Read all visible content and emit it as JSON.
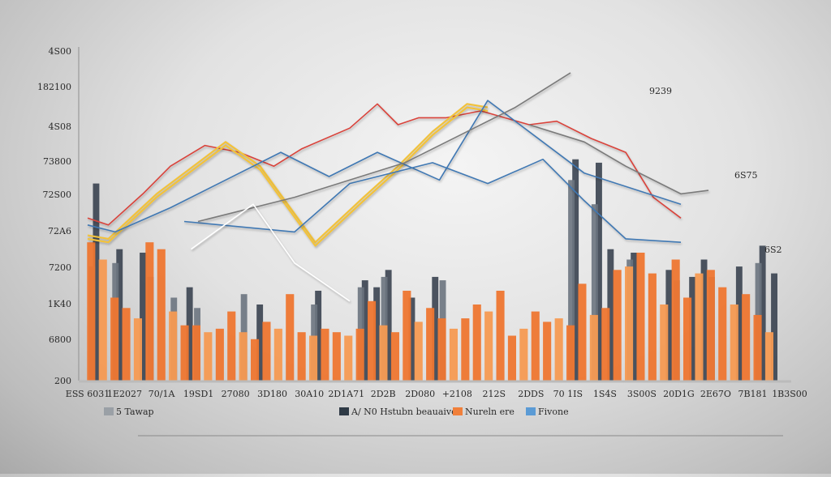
{
  "chart_data": {
    "type": "bar",
    "y_tick_labels": [
      "4S00",
      "182100",
      "4S08",
      "73800",
      "72S00",
      "72A6",
      "7200",
      "1K40",
      "6800",
      "200"
    ],
    "x_tick_labels": [
      "ESS 6031",
      "1E2027",
      "70/1A",
      "19SD1",
      "27080",
      "3D180",
      "30A10",
      "2D1A71",
      "2D2B",
      "2D080",
      "+2108",
      "212S",
      "2DDS",
      "70 1IS",
      "1S4S",
      "3S00S",
      "20D1G",
      "2E67O",
      "7B181",
      "1B3S00"
    ],
    "annotations": [
      "9239",
      "6S75",
      "6S2"
    ],
    "legend": [
      {
        "label": "5 Tawap",
        "color": "#9aa0a6"
      },
      {
        "label": "A/ N0 Hstubn beauaives",
        "color": "#2f3a46"
      },
      {
        "label": "Nureln ere",
        "color": "#f07f3a"
      },
      {
        "label": "Fivone",
        "color": "#5b9bd5"
      }
    ],
    "ylim": [
      0,
      4800
    ],
    "grid": false,
    "legend_placement": "bottom",
    "colors": {
      "bar_dark": "#3a4350",
      "bar_gray": "#6b7480",
      "bar_orange": "#ee7630",
      "bar_orange_light": "#f59a52",
      "line_red": "#d9433a",
      "line_yellow": "#f2c23a",
      "line_blue": "#3f78b3",
      "line_gray": "#7a7a7a",
      "line_white": "#ffffff"
    },
    "series": [
      {
        "kind": "bar",
        "role": "dark",
        "values": [
          2850,
          0,
          1900,
          0,
          1850,
          0,
          0,
          0,
          1350,
          0,
          0,
          0,
          0,
          0,
          1100,
          0,
          0,
          0,
          0,
          1300,
          0,
          0,
          0,
          1450,
          1350,
          1600,
          0,
          1200,
          0,
          1500,
          0,
          0,
          0,
          0,
          0,
          0,
          0,
          0,
          0,
          0,
          0,
          3200,
          0,
          3150,
          1900,
          0,
          1850,
          0,
          0,
          1600,
          0,
          1500,
          1750,
          0,
          0,
          1650,
          0,
          1950,
          1550
        ]
      },
      {
        "kind": "bar",
        "role": "gray",
        "values": [
          1650,
          0,
          1700,
          0,
          0,
          1500,
          0,
          1200,
          0,
          1050,
          0,
          0,
          0,
          1250,
          0,
          0,
          0,
          0,
          0,
          1100,
          0,
          0,
          0,
          1350,
          0,
          1500,
          0,
          0,
          0,
          0,
          1450,
          0,
          0,
          0,
          0,
          0,
          0,
          0,
          0,
          0,
          0,
          2900,
          0,
          2550,
          0,
          0,
          1750,
          0,
          0,
          0,
          1450,
          0,
          0,
          1500,
          0,
          0,
          0,
          1700,
          0
        ]
      },
      {
        "kind": "bar",
        "role": "orange",
        "values": [
          2000,
          1750,
          1200,
          1050,
          900,
          2000,
          1900,
          1000,
          800,
          800,
          700,
          750,
          1000,
          700,
          600,
          850,
          750,
          1250,
          700,
          650,
          750,
          700,
          650,
          750,
          1150,
          800,
          700,
          1300,
          850,
          1050,
          900,
          750,
          900,
          1100,
          1000,
          1300,
          650,
          750,
          1000,
          850,
          900,
          800,
          1400,
          950,
          1050,
          1600,
          1650,
          1850,
          1550,
          1100,
          1750,
          1200,
          1550,
          1600,
          1350,
          1100,
          1250,
          950,
          700
        ]
      }
    ],
    "lines": [
      {
        "name": "",
        "color_key": "line_red",
        "x_frac": [
          0.0,
          0.03,
          0.08,
          0.12,
          0.17,
          0.22,
          0.27,
          0.31,
          0.38,
          0.42,
          0.45,
          0.48,
          0.52,
          0.57,
          0.64,
          0.68,
          0.73,
          0.78,
          0.82,
          0.86
        ],
        "values": [
          2350,
          2250,
          2700,
          3100,
          3400,
          3300,
          3100,
          3350,
          3650,
          4000,
          3700,
          3800,
          3800,
          3900,
          3700,
          3750,
          3500,
          3300,
          2650,
          2350
        ]
      },
      {
        "name": "",
        "color_key": "line_yellow",
        "x_frac": [
          0.0,
          0.03,
          0.1,
          0.2,
          0.25,
          0.33,
          0.4,
          0.45,
          0.5,
          0.55,
          0.58
        ],
        "values": [
          2100,
          2050,
          2700,
          3450,
          3100,
          2000,
          2650,
          3100,
          3600,
          4000,
          3950
        ]
      },
      {
        "name": "",
        "color_key": "line_yellow",
        "x_frac": [
          0.0,
          0.03,
          0.1,
          0.2,
          0.25,
          0.33,
          0.4,
          0.45,
          0.5,
          0.55,
          0.58
        ],
        "values": [
          2050,
          2000,
          2650,
          3400,
          3050,
          1950,
          2600,
          3050,
          3550,
          3950,
          3900
        ]
      },
      {
        "name": "",
        "color_key": "line_blue",
        "x_frac": [
          0.0,
          0.04,
          0.12,
          0.2,
          0.28,
          0.35,
          0.42,
          0.51,
          0.58,
          0.72,
          0.86
        ],
        "values": [
          2250,
          2150,
          2500,
          2900,
          3300,
          2950,
          3300,
          2900,
          4050,
          3000,
          2550
        ]
      },
      {
        "name": "",
        "color_key": "line_blue",
        "x_frac": [
          0.14,
          0.3,
          0.38,
          0.5,
          0.58,
          0.66,
          0.72,
          0.78,
          0.86
        ],
        "values": [
          2300,
          2150,
          2850,
          3150,
          2850,
          3200,
          2600,
          2050,
          2000
        ]
      },
      {
        "name": "",
        "color_key": "line_gray",
        "x_frac": [
          0.16,
          0.3,
          0.46,
          0.54,
          0.62,
          0.7
        ],
        "values": [
          2300,
          2650,
          3150,
          3550,
          3950,
          4450
        ]
      },
      {
        "name": "",
        "color_key": "line_gray",
        "x_frac": [
          0.64,
          0.72,
          0.78,
          0.86,
          0.9
        ],
        "values": [
          3700,
          3450,
          3100,
          2700,
          2750
        ]
      },
      {
        "name": "",
        "color_key": "line_white",
        "x_frac": [
          0.15,
          0.24,
          0.3,
          0.38
        ],
        "values": [
          1900,
          2550,
          1700,
          1150
        ]
      }
    ]
  }
}
